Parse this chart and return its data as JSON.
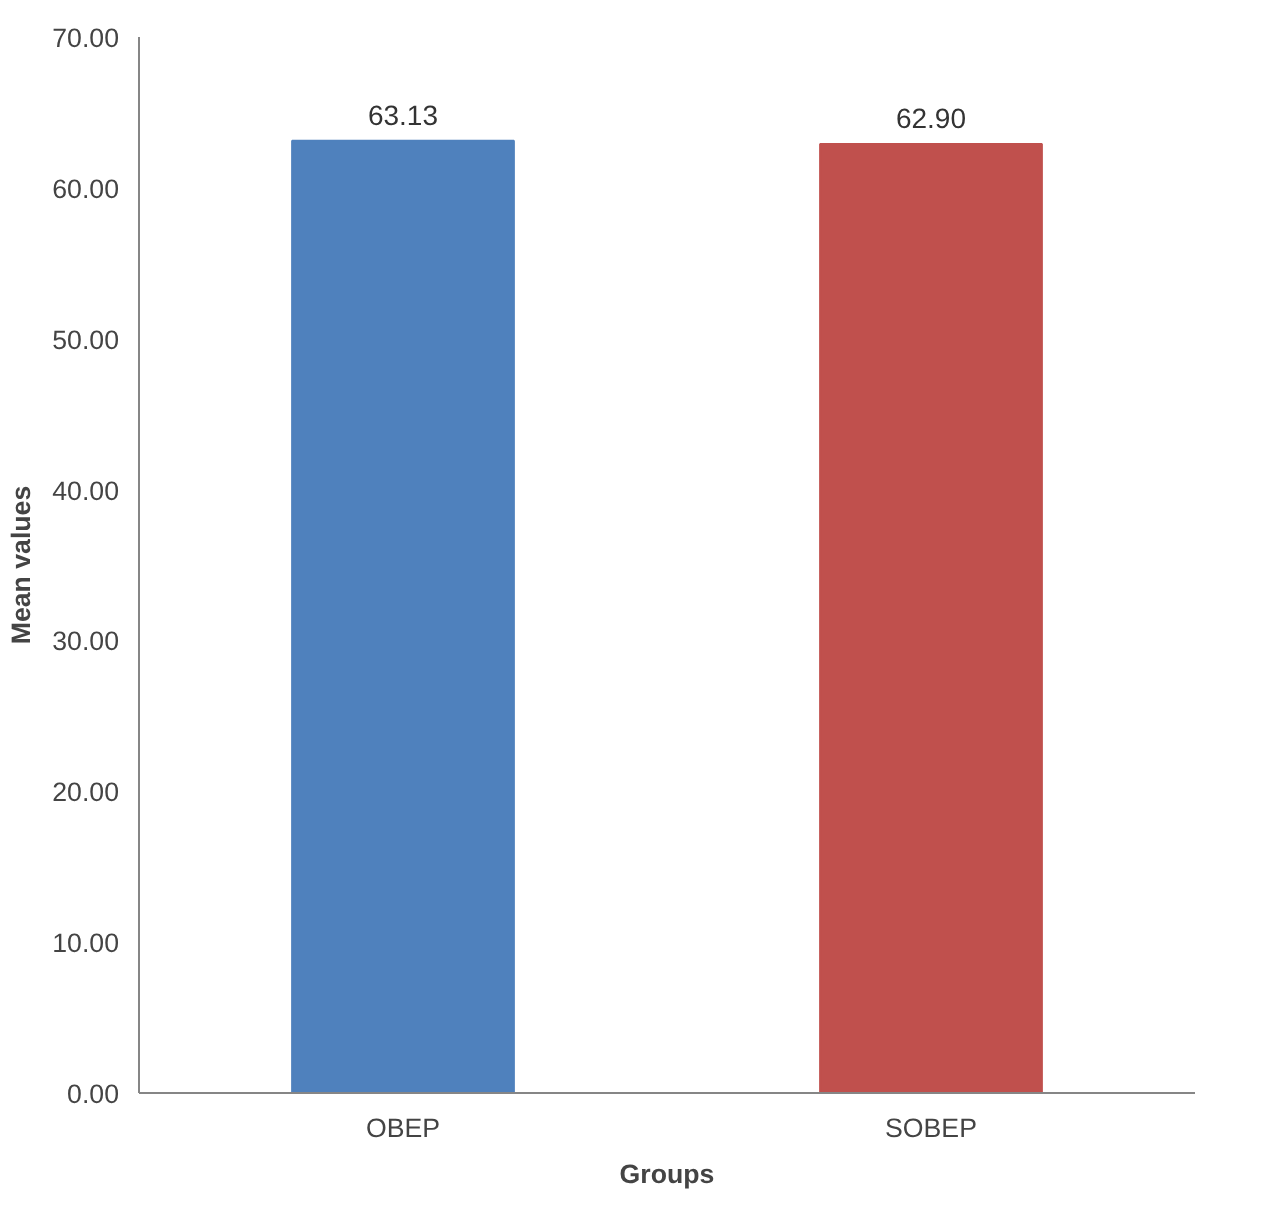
{
  "chart_data": {
    "type": "bar",
    "xlabel": "Groups",
    "ylabel": "Mean values",
    "categories": [
      "OBEP",
      "SOBEP"
    ],
    "values": [
      63.13,
      62.9
    ],
    "colors": [
      "#4f81bd",
      "#c0504d"
    ],
    "ylim": [
      0,
      70
    ],
    "yticks": [
      {
        "value": 0,
        "label": "0.00"
      },
      {
        "value": 10,
        "label": "10.00"
      },
      {
        "value": 20,
        "label": "20.00"
      },
      {
        "value": 30,
        "label": "30.00"
      },
      {
        "value": 40,
        "label": "40.00"
      },
      {
        "value": 50,
        "label": "50.00"
      },
      {
        "value": 60,
        "label": "60.00"
      },
      {
        "value": 70,
        "label": "70.00"
      }
    ],
    "value_labels": [
      "63.13",
      "62.90"
    ]
  }
}
